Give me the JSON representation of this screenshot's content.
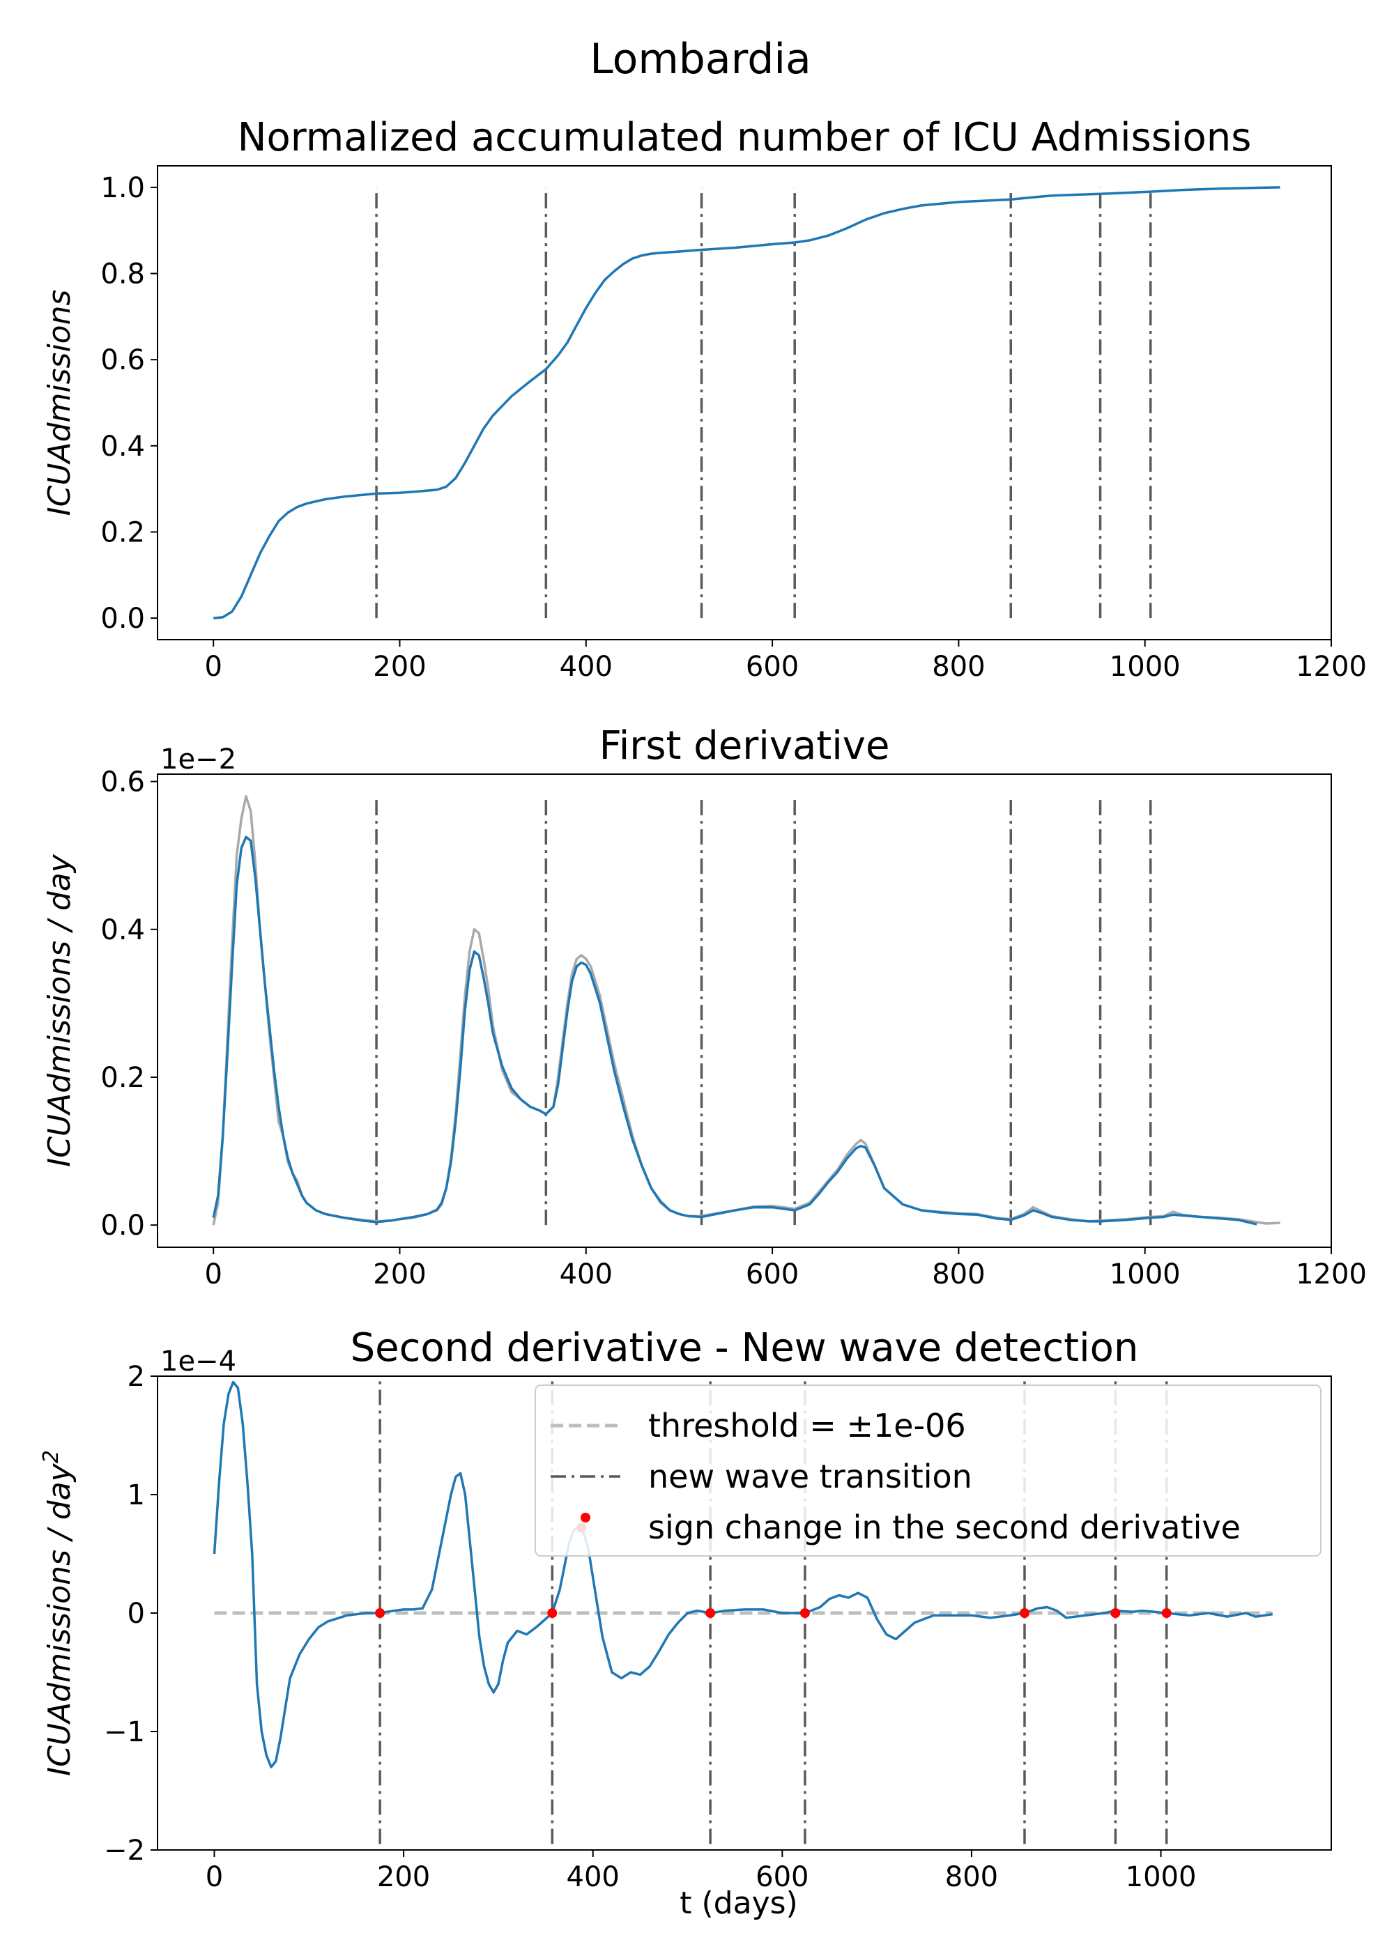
{
  "figure": {
    "suptitle": "Lombardia",
    "xlabel": "t (days)"
  },
  "styles": {
    "line_color": "#1f77b4",
    "raw_color": "#a9a9a9",
    "transition_color": "#5a5a5a",
    "threshold_color": "#bdbdbd",
    "marker_color": "#ff0000"
  },
  "chart_data": [
    {
      "type": "line",
      "title": "Normalized accumulated number of ICU Admissions",
      "ylabel": "ICUAdmissions",
      "xlim": [
        -60,
        1200
      ],
      "ylim": [
        -0.05,
        1.05
      ],
      "xticks": [
        0,
        200,
        400,
        600,
        800,
        1000,
        1200
      ],
      "xtick_labels": [
        "0",
        "200",
        "400",
        "600",
        "800",
        "1000",
        "1200"
      ],
      "yticks": [
        0.0,
        0.2,
        0.4,
        0.6,
        0.8,
        1.0
      ],
      "ytick_labels": [
        "0.0",
        "0.2",
        "0.4",
        "0.6",
        "0.8",
        "1.0"
      ],
      "transitions": [
        175,
        357,
        524,
        624,
        856,
        952,
        1006
      ],
      "transition_yrange": [
        0,
        1
      ],
      "series": [
        {
          "role": "main",
          "x": [
            0,
            10,
            20,
            30,
            40,
            50,
            60,
            70,
            80,
            90,
            100,
            120,
            140,
            160,
            175,
            200,
            220,
            240,
            250,
            260,
            270,
            280,
            290,
            300,
            320,
            340,
            357,
            370,
            380,
            390,
            400,
            410,
            420,
            430,
            440,
            450,
            460,
            470,
            480,
            500,
            524,
            560,
            600,
            624,
            640,
            660,
            680,
            700,
            720,
            740,
            760,
            800,
            856,
            880,
            900,
            952,
            1006,
            1040,
            1080,
            1120,
            1145
          ],
          "y": [
            0.0,
            0.002,
            0.015,
            0.05,
            0.1,
            0.15,
            0.19,
            0.225,
            0.245,
            0.258,
            0.266,
            0.276,
            0.282,
            0.286,
            0.289,
            0.291,
            0.294,
            0.298,
            0.305,
            0.325,
            0.36,
            0.4,
            0.44,
            0.47,
            0.515,
            0.55,
            0.578,
            0.61,
            0.64,
            0.68,
            0.72,
            0.755,
            0.785,
            0.805,
            0.822,
            0.835,
            0.842,
            0.846,
            0.848,
            0.851,
            0.855,
            0.86,
            0.868,
            0.872,
            0.877,
            0.888,
            0.905,
            0.925,
            0.94,
            0.95,
            0.958,
            0.966,
            0.972,
            0.977,
            0.981,
            0.985,
            0.99,
            0.994,
            0.997,
            0.999,
            1.0
          ]
        }
      ]
    },
    {
      "type": "line",
      "title": "First derivative",
      "ylabel": "ICUAdmissions / day",
      "offset_text": "1e−2",
      "xlim": [
        -60,
        1200
      ],
      "ylim": [
        -0.03,
        0.61
      ],
      "xticks": [
        0,
        200,
        400,
        600,
        800,
        1000,
        1200
      ],
      "xtick_labels": [
        "0",
        "200",
        "400",
        "600",
        "800",
        "1000",
        "1200"
      ],
      "yticks": [
        0.0,
        0.2,
        0.4,
        0.6
      ],
      "ytick_labels": [
        "0.0",
        "0.2",
        "0.4",
        "0.6"
      ],
      "transitions": [
        175,
        357,
        524,
        624,
        856,
        952,
        1006
      ],
      "transition_yrange": [
        0,
        0.58
      ],
      "series": [
        {
          "role": "raw",
          "x": [
            0,
            5,
            10,
            15,
            20,
            25,
            30,
            35,
            40,
            45,
            50,
            55,
            60,
            65,
            70,
            75,
            80,
            85,
            90,
            95,
            100,
            110,
            120,
            140,
            160,
            175,
            190,
            200,
            215,
            230,
            240,
            245,
            250,
            255,
            260,
            265,
            270,
            275,
            280,
            285,
            290,
            295,
            300,
            310,
            320,
            330,
            340,
            350,
            357,
            365,
            370,
            375,
            380,
            385,
            390,
            395,
            400,
            405,
            410,
            415,
            420,
            425,
            430,
            440,
            450,
            460,
            470,
            480,
            490,
            500,
            510,
            524,
            540,
            560,
            580,
            600,
            624,
            640,
            650,
            660,
            670,
            680,
            690,
            695,
            700,
            710,
            720,
            740,
            760,
            780,
            800,
            820,
            840,
            856,
            870,
            880,
            890,
            900,
            920,
            940,
            952,
            980,
            1006,
            1020,
            1030,
            1040,
            1060,
            1080,
            1100,
            1120,
            1130,
            1145
          ],
          "y": [
            0.0,
            0.03,
            0.12,
            0.25,
            0.38,
            0.5,
            0.55,
            0.58,
            0.56,
            0.49,
            0.4,
            0.33,
            0.26,
            0.2,
            0.14,
            0.12,
            0.085,
            0.07,
            0.06,
            0.04,
            0.03,
            0.02,
            0.015,
            0.01,
            0.007,
            0.005,
            0.006,
            0.008,
            0.01,
            0.015,
            0.02,
            0.028,
            0.05,
            0.09,
            0.15,
            0.23,
            0.31,
            0.37,
            0.4,
            0.395,
            0.36,
            0.32,
            0.27,
            0.21,
            0.18,
            0.17,
            0.16,
            0.155,
            0.15,
            0.16,
            0.2,
            0.25,
            0.3,
            0.34,
            0.36,
            0.365,
            0.36,
            0.35,
            0.33,
            0.31,
            0.28,
            0.25,
            0.22,
            0.17,
            0.12,
            0.08,
            0.05,
            0.03,
            0.02,
            0.015,
            0.012,
            0.012,
            0.016,
            0.02,
            0.025,
            0.026,
            0.022,
            0.03,
            0.045,
            0.06,
            0.075,
            0.095,
            0.11,
            0.115,
            0.11,
            0.08,
            0.05,
            0.028,
            0.02,
            0.018,
            0.016,
            0.015,
            0.01,
            0.008,
            0.015,
            0.024,
            0.018,
            0.012,
            0.008,
            0.005,
            0.006,
            0.008,
            0.011,
            0.012,
            0.018,
            0.014,
            0.011,
            0.01,
            0.008,
            0.004,
            0.002,
            0.003
          ]
        },
        {
          "role": "main",
          "x": [
            0,
            5,
            10,
            15,
            20,
            25,
            30,
            35,
            40,
            45,
            50,
            55,
            60,
            65,
            70,
            75,
            80,
            85,
            90,
            95,
            100,
            110,
            120,
            140,
            160,
            175,
            190,
            200,
            215,
            230,
            240,
            245,
            250,
            255,
            260,
            265,
            270,
            275,
            280,
            285,
            290,
            295,
            300,
            310,
            320,
            330,
            340,
            350,
            357,
            365,
            370,
            375,
            380,
            385,
            390,
            395,
            400,
            405,
            410,
            415,
            420,
            425,
            430,
            440,
            450,
            460,
            470,
            480,
            490,
            500,
            510,
            524,
            540,
            560,
            580,
            600,
            624,
            640,
            650,
            660,
            670,
            680,
            690,
            695,
            700,
            710,
            720,
            740,
            760,
            780,
            800,
            820,
            840,
            856,
            870,
            880,
            890,
            900,
            920,
            940,
            952,
            980,
            1006,
            1020,
            1030,
            1040,
            1060,
            1080,
            1100,
            1120
          ],
          "y": [
            0.01,
            0.04,
            0.12,
            0.23,
            0.35,
            0.46,
            0.51,
            0.525,
            0.52,
            0.47,
            0.4,
            0.33,
            0.27,
            0.21,
            0.16,
            0.12,
            0.09,
            0.07,
            0.055,
            0.04,
            0.03,
            0.02,
            0.015,
            0.01,
            0.006,
            0.004,
            0.006,
            0.008,
            0.011,
            0.015,
            0.021,
            0.03,
            0.05,
            0.085,
            0.14,
            0.21,
            0.29,
            0.345,
            0.37,
            0.365,
            0.335,
            0.3,
            0.26,
            0.215,
            0.185,
            0.17,
            0.16,
            0.155,
            0.15,
            0.16,
            0.19,
            0.24,
            0.29,
            0.33,
            0.35,
            0.355,
            0.352,
            0.34,
            0.32,
            0.3,
            0.27,
            0.24,
            0.21,
            0.16,
            0.115,
            0.08,
            0.05,
            0.032,
            0.02,
            0.015,
            0.012,
            0.011,
            0.015,
            0.02,
            0.024,
            0.024,
            0.02,
            0.028,
            0.042,
            0.058,
            0.072,
            0.09,
            0.104,
            0.107,
            0.105,
            0.08,
            0.05,
            0.028,
            0.02,
            0.017,
            0.015,
            0.014,
            0.009,
            0.007,
            0.013,
            0.02,
            0.016,
            0.011,
            0.007,
            0.005,
            0.005,
            0.007,
            0.01,
            0.011,
            0.014,
            0.013,
            0.011,
            0.009,
            0.007,
            0.001
          ]
        }
      ]
    },
    {
      "type": "line",
      "title": "Second derivative - New wave detection",
      "ylabel": "ICUAdmissions / day²",
      "offset_text": "1e−4",
      "xlim": [
        -60,
        1180
      ],
      "ylim": [
        -2,
        2
      ],
      "xticks": [
        0,
        200,
        400,
        600,
        800,
        1000
      ],
      "xtick_labels": [
        "0",
        "200",
        "400",
        "600",
        "800",
        "1000"
      ],
      "yticks": [
        -2,
        -1,
        0,
        1,
        2
      ],
      "ytick_labels": [
        "−2",
        "−1",
        "0",
        "1",
        "2"
      ],
      "transitions": [
        175,
        357,
        524,
        624,
        856,
        952,
        1006
      ],
      "transition_yrange": [
        -1.95,
        2
      ],
      "threshold": {
        "x": [
          0,
          1118
        ],
        "y": [
          0,
          0
        ]
      },
      "sign_changes": {
        "x": [
          175,
          357,
          388,
          524,
          624,
          856,
          952,
          1006
        ],
        "y": [
          0,
          0,
          0.72,
          0,
          0,
          0,
          0,
          0
        ]
      },
      "legend": [
        "threshold = ±1e-06",
        "new wave transition",
        "sign change in the second derivative"
      ],
      "series": [
        {
          "role": "main",
          "x": [
            0,
            5,
            10,
            15,
            20,
            25,
            30,
            35,
            40,
            45,
            50,
            55,
            60,
            65,
            70,
            75,
            80,
            90,
            100,
            110,
            120,
            140,
            160,
            175,
            190,
            200,
            210,
            220,
            230,
            240,
            250,
            255,
            260,
            265,
            270,
            275,
            280,
            285,
            290,
            295,
            300,
            305,
            310,
            320,
            330,
            340,
            350,
            357,
            365,
            370,
            375,
            380,
            385,
            390,
            395,
            400,
            410,
            420,
            430,
            440,
            450,
            460,
            470,
            480,
            490,
            500,
            510,
            524,
            540,
            560,
            580,
            600,
            624,
            640,
            650,
            660,
            670,
            680,
            690,
            700,
            710,
            720,
            730,
            740,
            760,
            780,
            800,
            820,
            840,
            856,
            870,
            880,
            890,
            900,
            920,
            940,
            952,
            970,
            980,
            1006,
            1030,
            1050,
            1070,
            1090,
            1100,
            1118
          ],
          "y": [
            0.5,
            1.1,
            1.6,
            1.85,
            1.95,
            1.9,
            1.6,
            1.1,
            0.5,
            -0.6,
            -1.0,
            -1.2,
            -1.3,
            -1.25,
            -1.05,
            -0.8,
            -0.55,
            -0.35,
            -0.22,
            -0.12,
            -0.07,
            -0.02,
            0.0,
            0.0,
            0.02,
            0.03,
            0.03,
            0.04,
            0.2,
            0.6,
            1.0,
            1.15,
            1.18,
            1.0,
            0.6,
            0.2,
            -0.2,
            -0.45,
            -0.6,
            -0.67,
            -0.6,
            -0.4,
            -0.25,
            -0.15,
            -0.18,
            -0.12,
            -0.05,
            0.0,
            0.2,
            0.4,
            0.6,
            0.7,
            0.72,
            0.68,
            0.55,
            0.3,
            -0.2,
            -0.5,
            -0.55,
            -0.5,
            -0.52,
            -0.45,
            -0.32,
            -0.18,
            -0.08,
            0.0,
            0.02,
            0.0,
            0.02,
            0.03,
            0.03,
            0.0,
            0.0,
            0.05,
            0.12,
            0.15,
            0.13,
            0.17,
            0.13,
            -0.05,
            -0.18,
            -0.22,
            -0.15,
            -0.08,
            -0.02,
            -0.02,
            -0.02,
            -0.04,
            -0.02,
            0.0,
            0.04,
            0.05,
            0.02,
            -0.04,
            -0.02,
            0.0,
            0.02,
            0.01,
            0.02,
            0.0,
            -0.02,
            0.0,
            -0.03,
            0.0,
            -0.03,
            -0.01
          ]
        }
      ]
    }
  ]
}
